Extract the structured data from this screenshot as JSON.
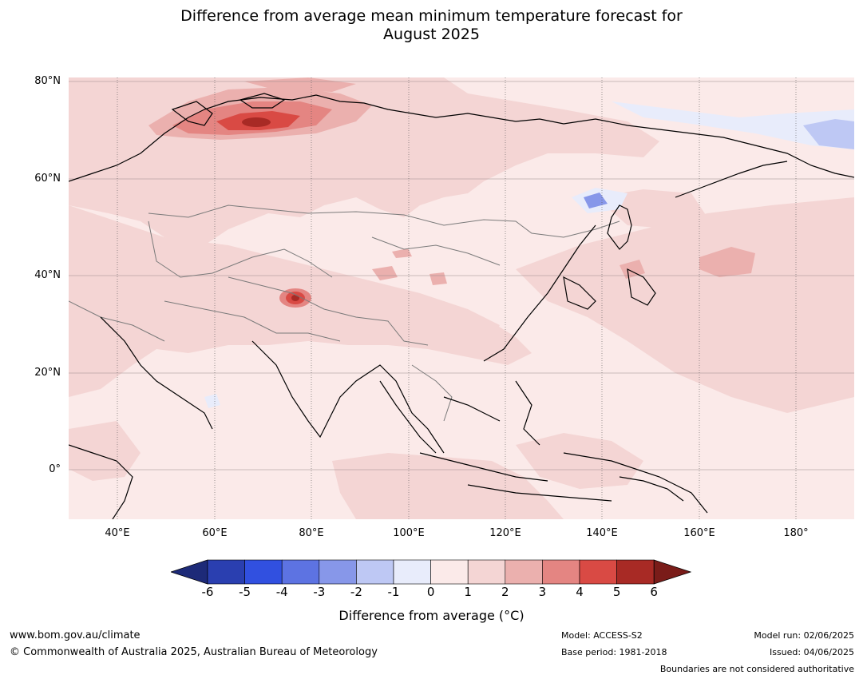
{
  "title_line1": "Difference from average mean minimum temperature forecast for",
  "title_line2": "August 2025",
  "map": {
    "lat_labels": [
      "80°N",
      "60°N",
      "40°N",
      "20°N",
      "0°"
    ],
    "lon_labels": [
      "40°E",
      "60°E",
      "80°E",
      "100°E",
      "120°E",
      "140°E",
      "160°E",
      "180°"
    ],
    "background_color": "#fbeae9"
  },
  "colorbar": {
    "ticks": [
      "-6",
      "-5",
      "-4",
      "-3",
      "-2",
      "-1",
      "0",
      "1",
      "2",
      "3",
      "4",
      "5",
      "6"
    ],
    "colors": [
      "#2a3fb0",
      "#3150e0",
      "#5d73e2",
      "#8797e9",
      "#bec8f4",
      "#e8ecfb",
      "#fbeae9",
      "#f4d5d4",
      "#ebb0ae",
      "#e48582",
      "#d94a44",
      "#a82a25"
    ],
    "extend_low_color": "#1d2a78",
    "extend_high_color": "#7a1c19",
    "title": "Difference from average (°C)"
  },
  "footer": {
    "url": "www.bom.gov.au/climate",
    "copyright": "© Commonwealth of Australia 2025, Australian Bureau of Meteorology",
    "model": "Model: ACCESS-S2",
    "base_period": "Base period: 1981-2018",
    "model_run": "Model run: 02/06/2025",
    "issued": "Issued: 04/06/2025",
    "boundaries_note": "Boundaries are not considered authoritative"
  }
}
